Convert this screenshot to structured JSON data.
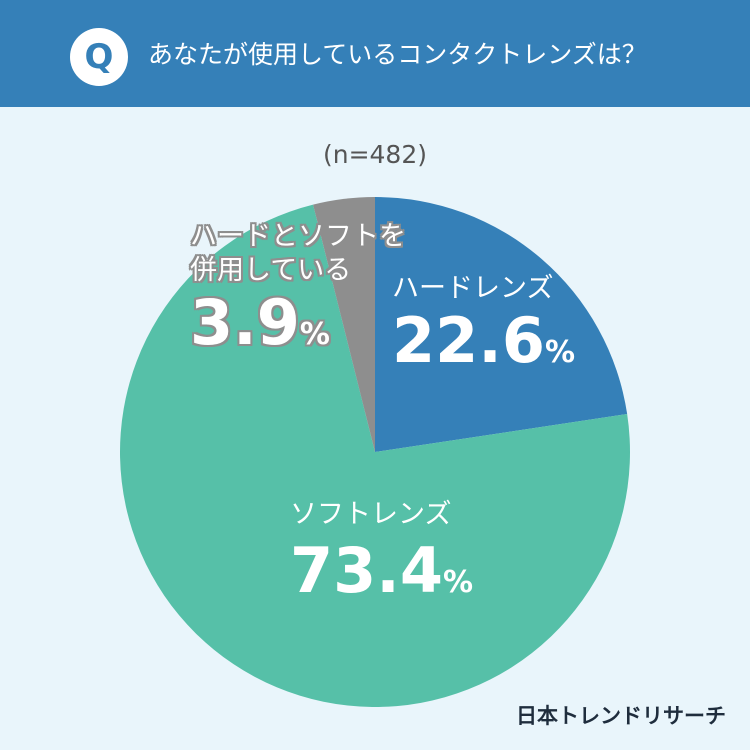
{
  "header": {
    "badge": "Q",
    "question": "あなたが使用しているコンタクトレンズは？"
  },
  "sample_size": "(n=482)",
  "colors": {
    "hard": "#3580b8",
    "soft": "#56c0a8",
    "both": "#8e8e8e",
    "background": "#e9f5fb"
  },
  "labels": {
    "hard": {
      "name": "ハードレンズ",
      "value": "22.6",
      "unit": "%"
    },
    "soft": {
      "name": "ソフトレンズ",
      "value": "73.4",
      "unit": "%"
    },
    "both": {
      "name_line1": "ハードとソフトを",
      "name_line2": "併用している",
      "value": "3.9",
      "unit": "%"
    }
  },
  "brand": "日本トレンドリサーチ",
  "chart_data": {
    "type": "pie",
    "title": "あなたが使用しているコンタクトレンズは？",
    "categories": [
      "ハードレンズ",
      "ソフトレンズ",
      "ハードとソフトを併用している"
    ],
    "values": [
      22.6,
      73.4,
      3.9
    ],
    "unit": "%",
    "start_angle": "12 o'clock",
    "direction": "clockwise"
  }
}
